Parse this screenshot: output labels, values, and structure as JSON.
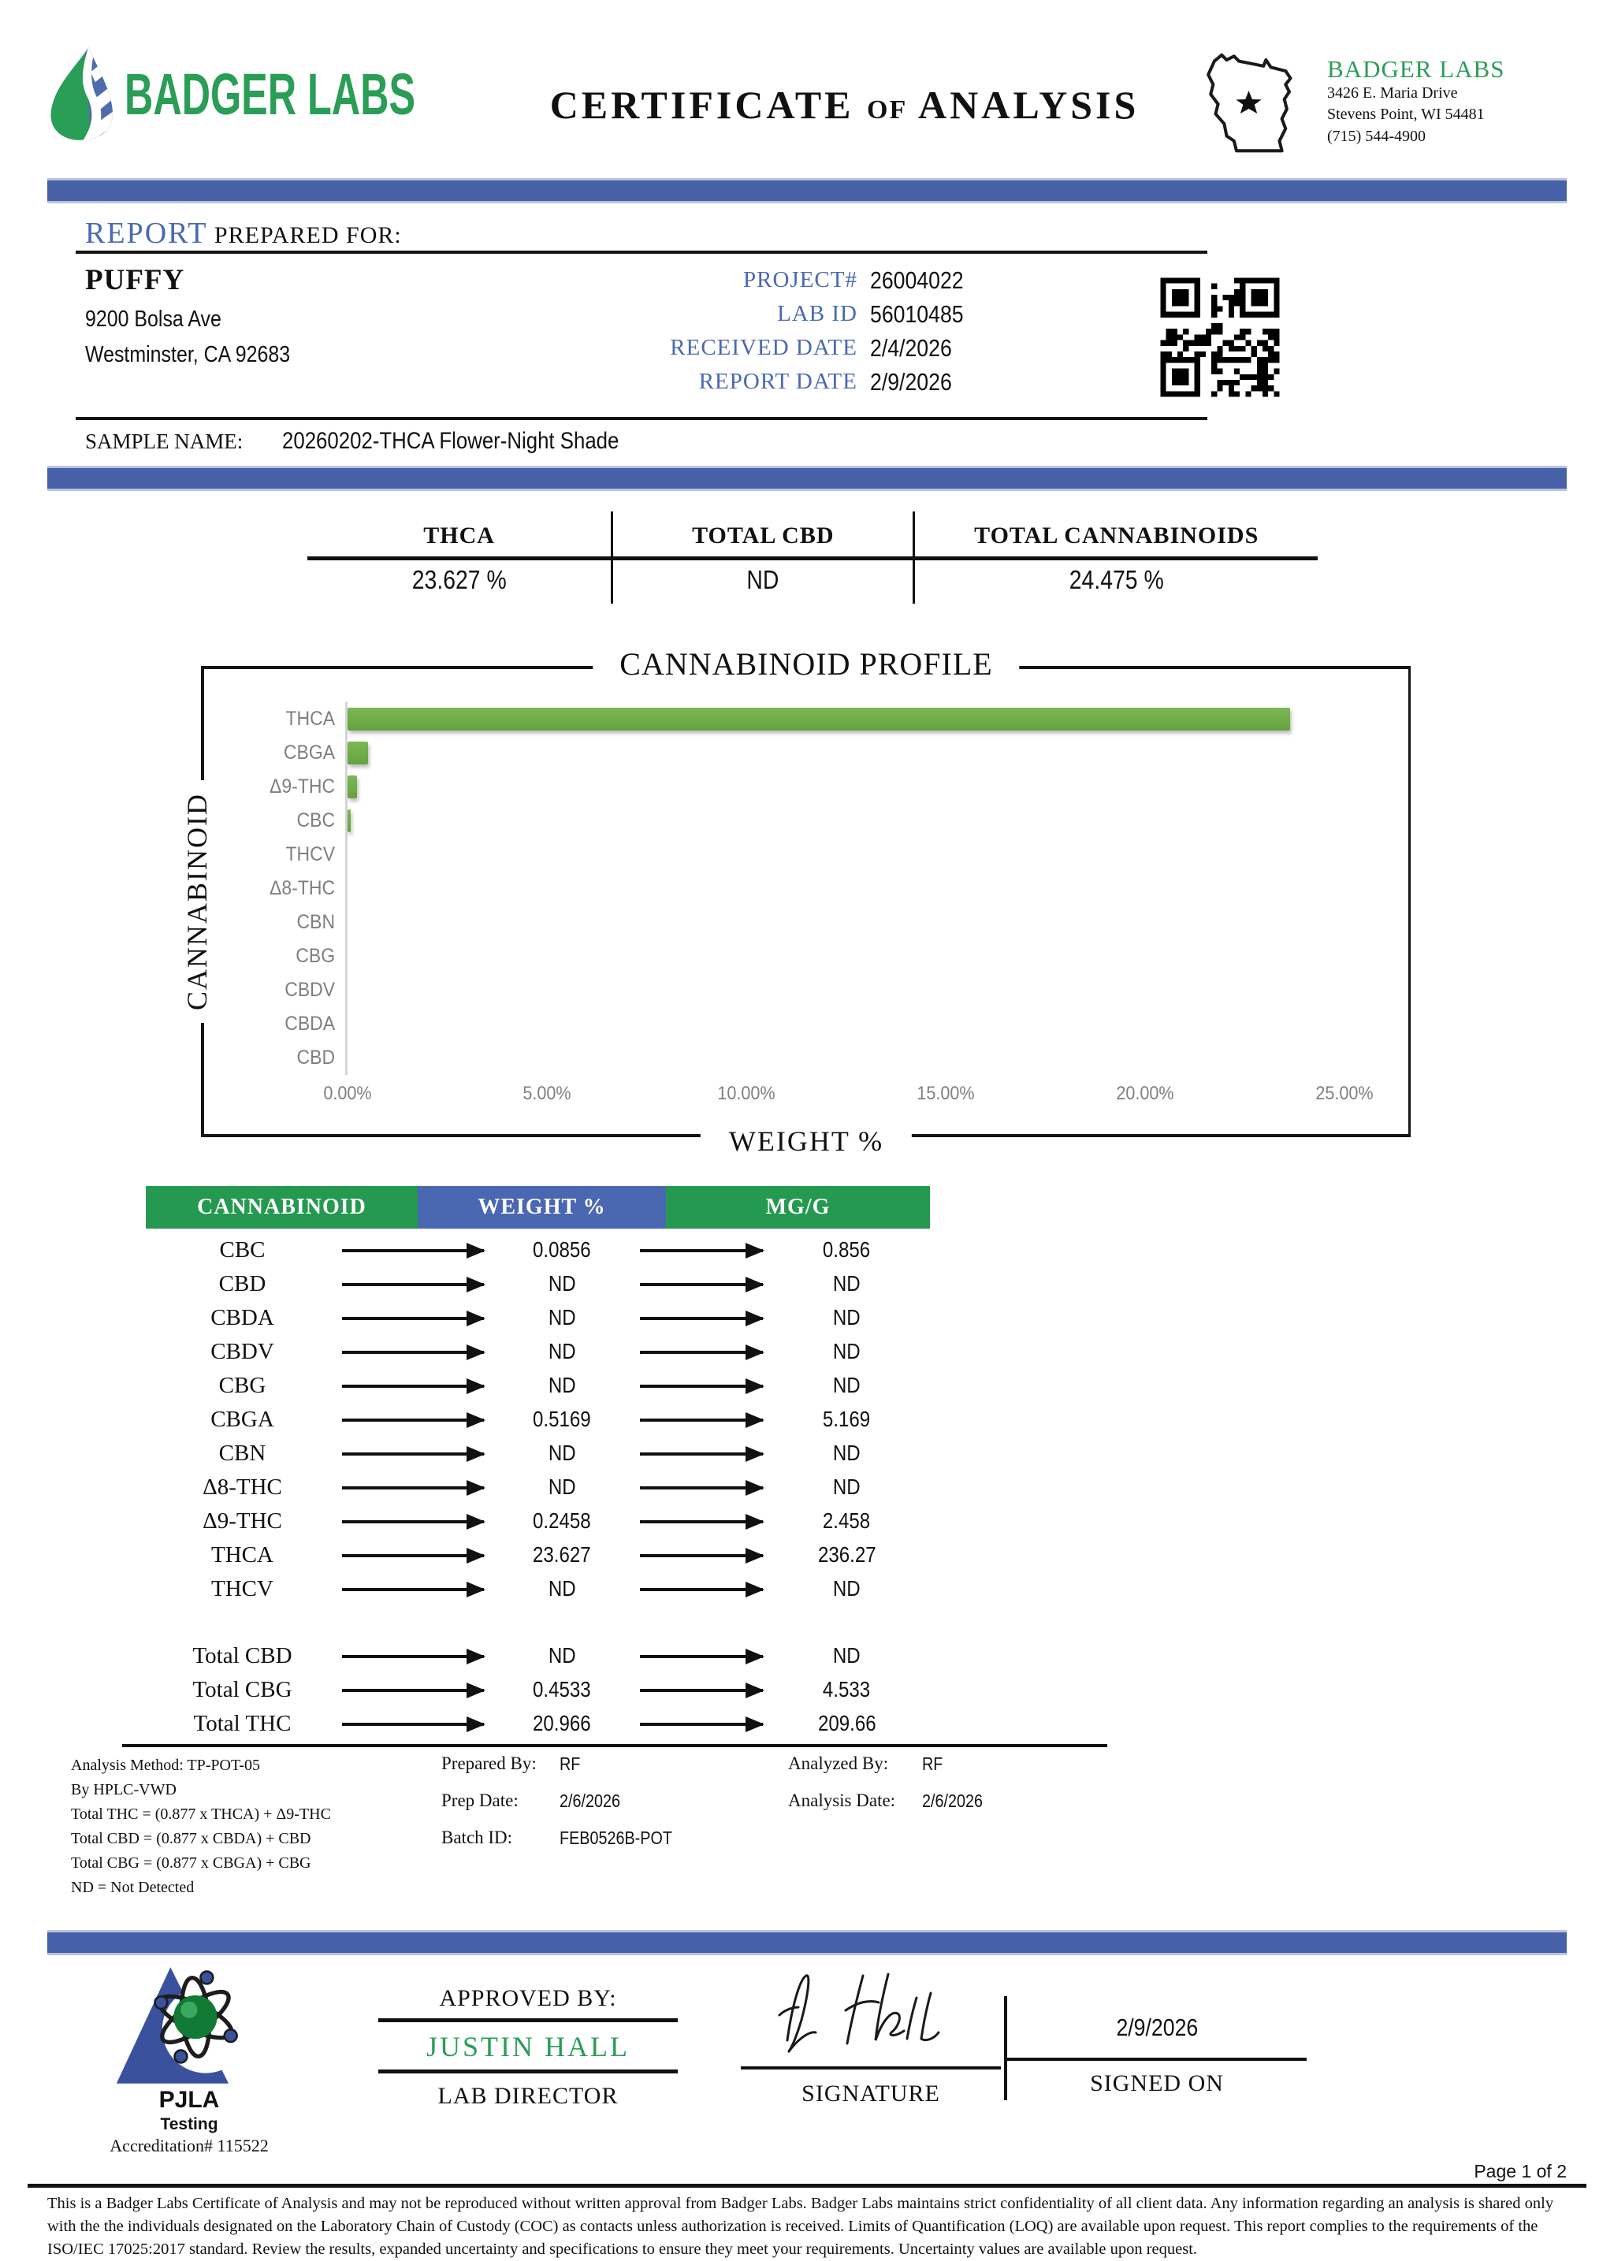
{
  "colors": {
    "green": "#2a9d56",
    "blue_label": "#4a69b1",
    "bar_blue": "#4661a8",
    "table_green": "#24994f",
    "table_blue": "#4a67b2",
    "chart_green": "#70ad47",
    "pjla_blue": "#3a519e"
  },
  "header": {
    "logo_text": "BADGER LABS",
    "title_certificate": "CERTIFICATE",
    "title_of": "of",
    "title_analysis": "ANALYSIS",
    "lab_name": "BADGER LABS",
    "lab_address1": "3426 E. Maria Drive",
    "lab_address2": "Stevens Point, WI 54481",
    "lab_phone": "(715) 544-4900"
  },
  "report": {
    "heading_accent": "REPORT",
    "heading_rest": " PREPARED FOR:",
    "client_name": "PUFFY",
    "client_address1": "9200 Bolsa Ave",
    "client_address2": "Westminster, CA 92683",
    "meta": [
      {
        "label": "PROJECT#",
        "value": "26004022"
      },
      {
        "label": "LAB ID",
        "value": "56010485"
      },
      {
        "label": "RECEIVED DATE",
        "value": "2/4/2026"
      },
      {
        "label": "REPORT DATE",
        "value": "2/9/2026"
      }
    ],
    "sample_label": "SAMPLE NAME:",
    "sample_name": "20260202-THCA Flower-Night Shade"
  },
  "summary": {
    "columns": [
      {
        "label": "THCA",
        "value": "23.627 %"
      },
      {
        "label": "TOTAL CBD",
        "value": "ND"
      },
      {
        "label": "TOTAL CANNABINOIDS",
        "value": "24.475 %"
      }
    ]
  },
  "chart_data": {
    "type": "bar",
    "orientation": "horizontal",
    "title": "CANNABINOID PROFILE",
    "xlabel": "WEIGHT %",
    "ylabel": "CANNABINOID",
    "categories": [
      "THCA",
      "CBGA",
      "Δ9-THC",
      "CBC",
      "THCV",
      "Δ8-THC",
      "CBN",
      "CBG",
      "CBDV",
      "CBDA",
      "CBD"
    ],
    "values": [
      23.627,
      0.5169,
      0.2458,
      0.0856,
      0,
      0,
      0,
      0,
      0,
      0,
      0
    ],
    "xlim": [
      0,
      25
    ],
    "x_ticks": [
      "0.00%",
      "5.00%",
      "10.00%",
      "15.00%",
      "20.00%",
      "25.00%"
    ],
    "grid": false,
    "legend": "none",
    "bar_color": "#70ad47"
  },
  "table": {
    "headers": [
      "CANNABINOID",
      "WEIGHT %",
      "MG/G"
    ],
    "rows": [
      {
        "name": "CBC",
        "weight": "0.0856",
        "mg": "0.856"
      },
      {
        "name": "CBD",
        "weight": "ND",
        "mg": "ND"
      },
      {
        "name": "CBDA",
        "weight": "ND",
        "mg": "ND"
      },
      {
        "name": "CBDV",
        "weight": "ND",
        "mg": "ND"
      },
      {
        "name": "CBG",
        "weight": "ND",
        "mg": "ND"
      },
      {
        "name": "CBGA",
        "weight": "0.5169",
        "mg": "5.169"
      },
      {
        "name": "CBN",
        "weight": "ND",
        "mg": "ND"
      },
      {
        "name": "Δ8-THC",
        "weight": "ND",
        "mg": "ND"
      },
      {
        "name": "Δ9-THC",
        "weight": "0.2458",
        "mg": "2.458"
      },
      {
        "name": "THCA",
        "weight": "23.627",
        "mg": "236.27"
      },
      {
        "name": "THCV",
        "weight": "ND",
        "mg": "ND"
      }
    ],
    "total_rows": [
      {
        "name": "Total CBD",
        "weight": "ND",
        "mg": "ND"
      },
      {
        "name": "Total CBG",
        "weight": "0.4533",
        "mg": "4.533"
      },
      {
        "name": "Total THC",
        "weight": "20.966",
        "mg": "209.66"
      }
    ]
  },
  "footnotes": {
    "left_lines": [
      "Analysis Method: TP-POT-05",
      "By HPLC-VWD",
      "Total THC = (0.877 x  THCA) + Δ9-THC",
      "Total CBD = (0.877 x  CBDA) + CBD",
      "Total CBG = (0.877 x  CBGA) + CBG",
      "ND = Not Detected"
    ],
    "prepared_by_label": "Prepared By:",
    "prepared_by": "RF",
    "prep_date_label": "Prep Date:",
    "prep_date": "2/6/2026",
    "batch_id_label": "Batch ID:",
    "batch_id": "FEB0526B-POT",
    "analyzed_by_label": "Analyzed By:",
    "analyzed_by": "RF",
    "analysis_date_label": "Analysis Date:",
    "analysis_date": "2/6/2026"
  },
  "footer": {
    "accreditation_org": "PJLA",
    "accreditation_sub": "Testing",
    "accreditation_number": "Accreditation# 115522",
    "approved_by_label": "APPROVED BY:",
    "approver_name": "JUSTIN HALL",
    "approver_title": "LAB DIRECTOR",
    "signature_label": "SIGNATURE",
    "signed_on_label": "SIGNED ON",
    "signed_date": "2/9/2026",
    "page_indicator": "Page 1 of 2",
    "disclaimer": "This is a Badger Labs Certificate of Analysis and may not be reproduced without written approval from Badger Labs. Badger Labs maintains strict confidentiality of all client data. Any information regarding an analysis is shared only with the the individuals designated on the Laboratory Chain of Custody (COC) as contacts unless authorization is received. Limits of Quantification (LOQ) are available upon request. This report complies to the requirements of the ISO/IEC 17025:2017 standard. Review the results, expanded uncertainty and specifications to ensure they meet your requirements. Uncertainty values are available upon request."
  }
}
